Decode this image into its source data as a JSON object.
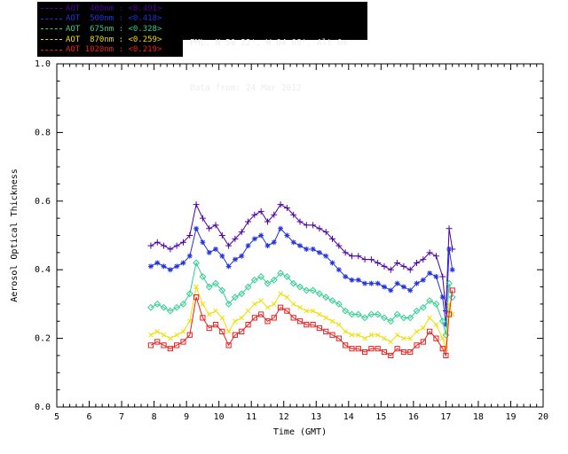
{
  "header": {
    "line1": "PML, N 50 22', W 04 08', Alt 0m",
    "line2": "Data from: 24 Mar 2012",
    "bg": "#000000",
    "fg": "#ececec"
  },
  "legend": {
    "bg": "#000000",
    "rows": [
      {
        "label": "AOT  400nm : <0.491>",
        "color": "#4e00a0",
        "marker": "plus"
      },
      {
        "label": "AOT  500nm : <0.418>",
        "color": "#2233dd",
        "marker": "asterisk"
      },
      {
        "label": "AOT  675nm : <0.328>",
        "color": "#2fcf8f",
        "marker": "diamond"
      },
      {
        "label": "AOT  870nm : <0.259>",
        "color": "#ede000",
        "marker": "x"
      },
      {
        "label": "AOT 1020nm : <0.219>",
        "color": "#e82020",
        "marker": "square"
      }
    ]
  },
  "chart_data": {
    "type": "line",
    "title": "",
    "xlabel": "Time (GMT)",
    "ylabel": "Aerosol Optical Thickness",
    "xlim": [
      5,
      20
    ],
    "ylim": [
      0.0,
      1.0
    ],
    "xticks": [
      5,
      6,
      7,
      8,
      9,
      10,
      11,
      12,
      13,
      14,
      15,
      16,
      17,
      18,
      19,
      20
    ],
    "yticks": [
      0.0,
      0.2,
      0.4,
      0.6,
      0.8,
      1.0
    ],
    "x_minor_step": 0.2,
    "y_minor_step": 0.05,
    "grid": false,
    "legend_position": "top-left",
    "axis_color": "#000000",
    "x": [
      7.9,
      8.1,
      8.3,
      8.5,
      8.7,
      8.9,
      9.1,
      9.3,
      9.5,
      9.7,
      9.9,
      10.1,
      10.3,
      10.5,
      10.7,
      10.9,
      11.1,
      11.3,
      11.5,
      11.7,
      11.9,
      12.1,
      12.3,
      12.5,
      12.7,
      12.9,
      13.1,
      13.3,
      13.5,
      13.7,
      13.9,
      14.1,
      14.3,
      14.5,
      14.7,
      14.9,
      15.1,
      15.3,
      15.5,
      15.7,
      15.9,
      16.1,
      16.3,
      16.5,
      16.7,
      16.9,
      17.0,
      17.1,
      17.2
    ],
    "series": [
      {
        "name": "AOT 400nm",
        "mean": 0.491,
        "color": "#4e00a0",
        "marker": "plus",
        "values": [
          0.47,
          0.48,
          0.47,
          0.46,
          0.47,
          0.48,
          0.5,
          0.59,
          0.55,
          0.52,
          0.53,
          0.5,
          0.47,
          0.49,
          0.51,
          0.54,
          0.56,
          0.57,
          0.54,
          0.56,
          0.59,
          0.58,
          0.56,
          0.54,
          0.53,
          0.53,
          0.52,
          0.51,
          0.49,
          0.47,
          0.45,
          0.44,
          0.44,
          0.43,
          0.43,
          0.42,
          0.41,
          0.4,
          0.42,
          0.41,
          0.4,
          0.42,
          0.43,
          0.45,
          0.44,
          0.38,
          0.28,
          0.52,
          0.46
        ]
      },
      {
        "name": "AOT 500nm",
        "mean": 0.418,
        "color": "#2233dd",
        "marker": "asterisk",
        "values": [
          0.41,
          0.42,
          0.41,
          0.4,
          0.41,
          0.42,
          0.44,
          0.52,
          0.48,
          0.45,
          0.46,
          0.44,
          0.41,
          0.43,
          0.44,
          0.47,
          0.49,
          0.5,
          0.47,
          0.48,
          0.52,
          0.5,
          0.48,
          0.47,
          0.46,
          0.46,
          0.45,
          0.44,
          0.42,
          0.4,
          0.38,
          0.37,
          0.37,
          0.36,
          0.36,
          0.36,
          0.35,
          0.34,
          0.36,
          0.35,
          0.34,
          0.36,
          0.37,
          0.39,
          0.38,
          0.32,
          0.24,
          0.46,
          0.4
        ]
      },
      {
        "name": "AOT 675nm",
        "mean": 0.328,
        "color": "#2fcf8f",
        "marker": "diamond",
        "values": [
          0.29,
          0.3,
          0.29,
          0.28,
          0.29,
          0.3,
          0.33,
          0.42,
          0.38,
          0.35,
          0.36,
          0.34,
          0.3,
          0.32,
          0.33,
          0.35,
          0.37,
          0.38,
          0.36,
          0.37,
          0.39,
          0.38,
          0.36,
          0.35,
          0.34,
          0.34,
          0.33,
          0.32,
          0.31,
          0.3,
          0.28,
          0.27,
          0.27,
          0.26,
          0.27,
          0.27,
          0.26,
          0.25,
          0.27,
          0.26,
          0.26,
          0.28,
          0.29,
          0.31,
          0.3,
          0.25,
          0.21,
          0.36,
          0.32
        ]
      },
      {
        "name": "AOT 870nm",
        "mean": 0.259,
        "color": "#ede000",
        "marker": "x",
        "values": [
          0.21,
          0.22,
          0.21,
          0.2,
          0.21,
          0.22,
          0.25,
          0.35,
          0.3,
          0.27,
          0.28,
          0.26,
          0.22,
          0.25,
          0.26,
          0.28,
          0.3,
          0.31,
          0.29,
          0.3,
          0.33,
          0.32,
          0.3,
          0.29,
          0.28,
          0.28,
          0.27,
          0.26,
          0.25,
          0.24,
          0.22,
          0.21,
          0.21,
          0.2,
          0.21,
          0.21,
          0.2,
          0.19,
          0.21,
          0.2,
          0.2,
          0.22,
          0.23,
          0.26,
          0.24,
          0.2,
          0.17,
          0.3,
          0.27
        ]
      },
      {
        "name": "AOT 1020nm",
        "mean": 0.219,
        "color": "#e82020",
        "marker": "square",
        "values": [
          0.18,
          0.19,
          0.18,
          0.17,
          0.18,
          0.19,
          0.21,
          0.32,
          0.26,
          0.23,
          0.24,
          0.22,
          0.18,
          0.21,
          0.22,
          0.24,
          0.26,
          0.27,
          0.25,
          0.26,
          0.29,
          0.28,
          0.26,
          0.25,
          0.24,
          0.24,
          0.23,
          0.22,
          0.21,
          0.2,
          0.18,
          0.17,
          0.17,
          0.16,
          0.17,
          0.17,
          0.16,
          0.15,
          0.17,
          0.16,
          0.16,
          0.18,
          0.19,
          0.22,
          0.2,
          0.17,
          0.15,
          0.27,
          0.34
        ]
      }
    ]
  }
}
